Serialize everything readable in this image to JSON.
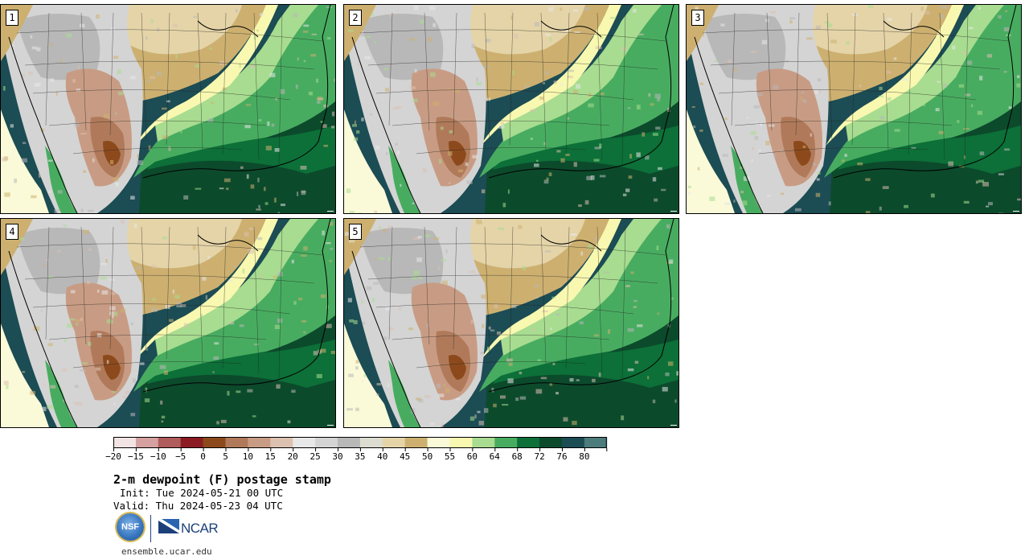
{
  "panels": [
    {
      "label": "1"
    },
    {
      "label": "2"
    },
    {
      "label": "3"
    },
    {
      "label": "4"
    },
    {
      "label": "5"
    }
  ],
  "colorbar": {
    "colors": [
      "#f2e4e4",
      "#d5a0a0",
      "#b05c5c",
      "#8c1c24",
      "#8c4a1c",
      "#b07a5a",
      "#c89c84",
      "#dcc0b0",
      "#e8e8e8",
      "#d4d4d4",
      "#b8b8b8",
      "#dcdcd0",
      "#e4d4a8",
      "#cdb070",
      "#fafad8",
      "#f8f8b0",
      "#a8dc90",
      "#48ac60",
      "#0c7038",
      "#0c4a2c",
      "#1c4c54",
      "#4c7c7c"
    ],
    "tick_labels": [
      "−20",
      "−15",
      "−10",
      "−5",
      "0",
      "5",
      "10",
      "15",
      "20",
      "25",
      "30",
      "35",
      "40",
      "45",
      "50",
      "55",
      "60",
      "64",
      "68",
      "72",
      "76",
      "80"
    ]
  },
  "title": "2-m dewpoint (F) postage stamp",
  "init": "Init: Tue 2024-05-21 00 UTC",
  "valid": "Valid: Thu 2024-05-23 04 UTC",
  "logos": {
    "nsf": "NSF",
    "ncar": "NCAR"
  },
  "url": "ensemble.ucar.edu"
}
